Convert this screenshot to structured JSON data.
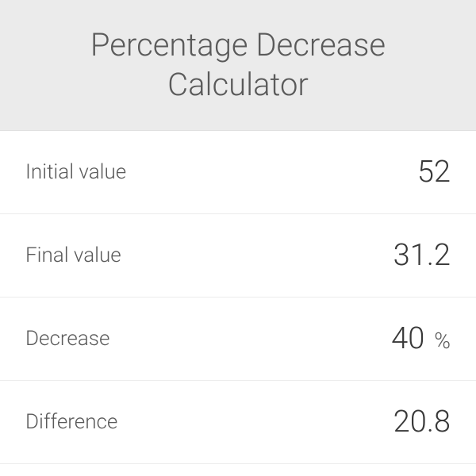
{
  "header": {
    "title": "Percentage Decrease Calculator"
  },
  "rows": [
    {
      "label": "Initial value",
      "value": "52",
      "unit": ""
    },
    {
      "label": "Final value",
      "value": "31.2",
      "unit": ""
    },
    {
      "label": "Decrease",
      "value": "40",
      "unit": "%"
    },
    {
      "label": "Difference",
      "value": "20.8",
      "unit": ""
    }
  ],
  "colors": {
    "header_bg": "#ebebeb",
    "row_bg": "#ffffff",
    "border": "#ececec",
    "title_text": "#5a5a5a",
    "label_text": "#5a5a5a",
    "value_text": "#383838"
  }
}
